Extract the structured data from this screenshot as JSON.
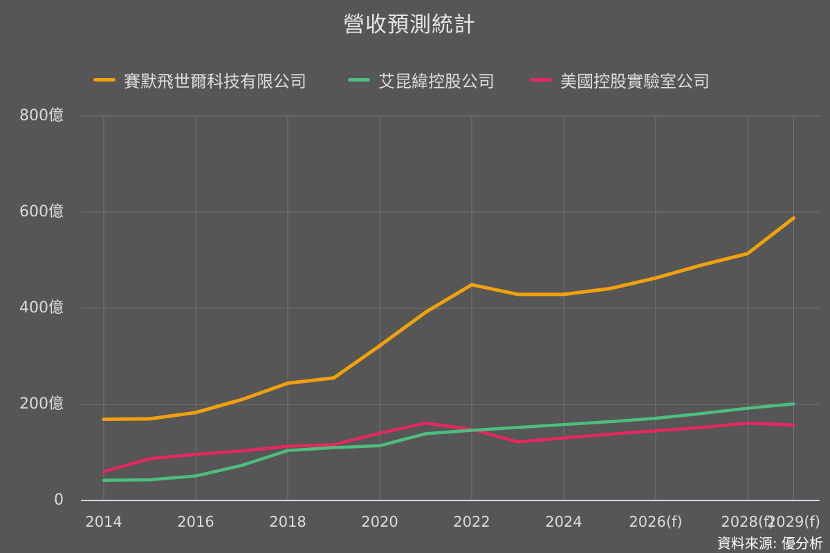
{
  "title": "營收預測統計",
  "source_note": "資料來源: 優分析",
  "colors": {
    "background": "#565656",
    "text": "#DCDCDC",
    "grid": "#7E7E7E",
    "axis_line": "#D6D6E8",
    "source_text": "#FFFFFF",
    "orange": "#F0A10C",
    "green": "#4DBE7D",
    "pink": "#E62860"
  },
  "legend": {
    "items": [
      {
        "label": "賽默飛世爾科技有限公司",
        "color": "#F0A10C"
      },
      {
        "label": "艾昆緯控股公司",
        "color": "#4DBE7D"
      },
      {
        "label": "美國控股實驗室公司",
        "color": "#E62860"
      }
    ]
  },
  "chart_data": {
    "type": "line",
    "title": "營收預測統計",
    "unit": "億",
    "x": [
      2014,
      2015,
      2016,
      2017,
      2018,
      2019,
      2020,
      2021,
      2022,
      2023,
      2024,
      2025,
      2026,
      2027,
      2028,
      2029
    ],
    "x_tick_positions": [
      2014,
      2016,
      2018,
      2020,
      2022,
      2024,
      2026,
      2028,
      2029
    ],
    "x_tick_labels": [
      "2014",
      "2016",
      "2018",
      "2020",
      "2022",
      "2024",
      "2026(f)",
      "2028(f)",
      "2029(f)"
    ],
    "y_ticks": [
      0,
      200,
      400,
      600,
      800
    ],
    "y_tick_labels": [
      "0",
      "200億",
      "400億",
      "600億",
      "800億"
    ],
    "ylim": [
      0,
      800
    ],
    "grid": true,
    "legend_position": "top",
    "series": [
      {
        "name": "賽默飛世爾科技有限公司",
        "color": "#F0A10C",
        "values": [
          169,
          170,
          183,
          210,
          244,
          255,
          322,
          392,
          449,
          429,
          429,
          441,
          463,
          490,
          514,
          588
        ]
      },
      {
        "name": "艾昆緯控股公司",
        "color": "#4DBE7D",
        "values": [
          42,
          43,
          51,
          73,
          104,
          110,
          114,
          139,
          146,
          152,
          158,
          164,
          171,
          181,
          192,
          201
        ]
      },
      {
        "name": "美國控股實驗室公司",
        "color": "#E62860",
        "values": [
          60,
          87,
          96,
          103,
          113,
          116,
          140,
          161,
          148,
          122,
          130,
          138,
          145,
          152,
          161,
          157
        ]
      }
    ]
  }
}
